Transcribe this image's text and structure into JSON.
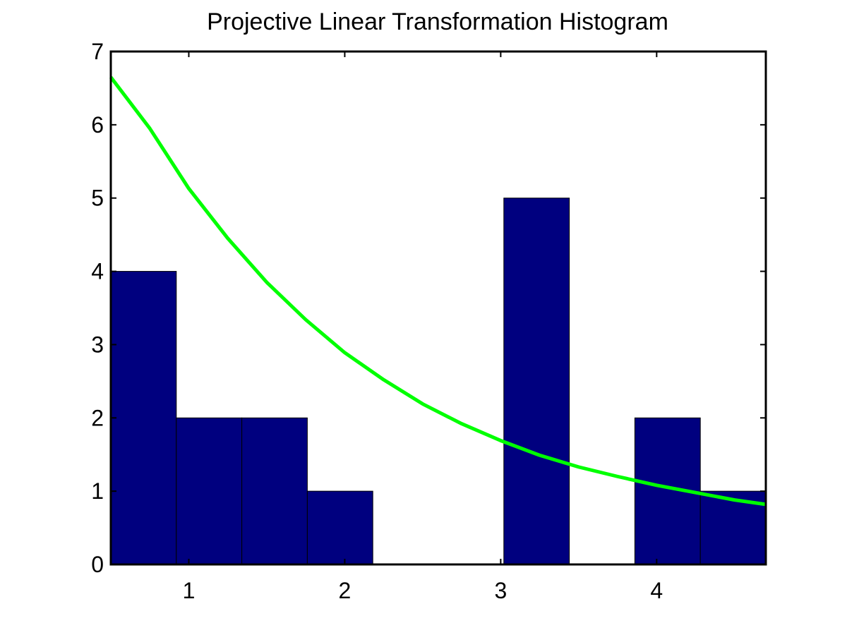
{
  "chart_data": {
    "type": "bar",
    "title": "Projective Linear Transformation Histogram",
    "xlabel": "",
    "ylabel": "",
    "xlim": [
      0.5,
      4.7
    ],
    "ylim": [
      0,
      7
    ],
    "xticks": [
      1,
      2,
      3,
      4
    ],
    "yticks": [
      0,
      1,
      2,
      3,
      4,
      5,
      6,
      7
    ],
    "grid": false,
    "bin_edges": [
      0.5,
      0.92,
      1.34,
      1.76,
      2.18,
      2.6,
      3.02,
      3.44,
      3.86,
      4.28,
      4.7
    ],
    "values": [
      4,
      2,
      2,
      1,
      0,
      0,
      5,
      0,
      2,
      1
    ],
    "bar_color": "#00007f",
    "curve": {
      "color": "#00ff00",
      "x": [
        0.5,
        0.75,
        1.0,
        1.25,
        1.5,
        1.75,
        2.0,
        2.25,
        2.5,
        2.75,
        3.0,
        3.25,
        3.5,
        3.75,
        4.0,
        4.25,
        4.5,
        4.7
      ],
      "y": [
        6.65,
        5.95,
        5.13,
        4.45,
        3.85,
        3.34,
        2.89,
        2.52,
        2.19,
        1.92,
        1.69,
        1.49,
        1.33,
        1.2,
        1.08,
        0.98,
        0.88,
        0.82
      ]
    }
  }
}
